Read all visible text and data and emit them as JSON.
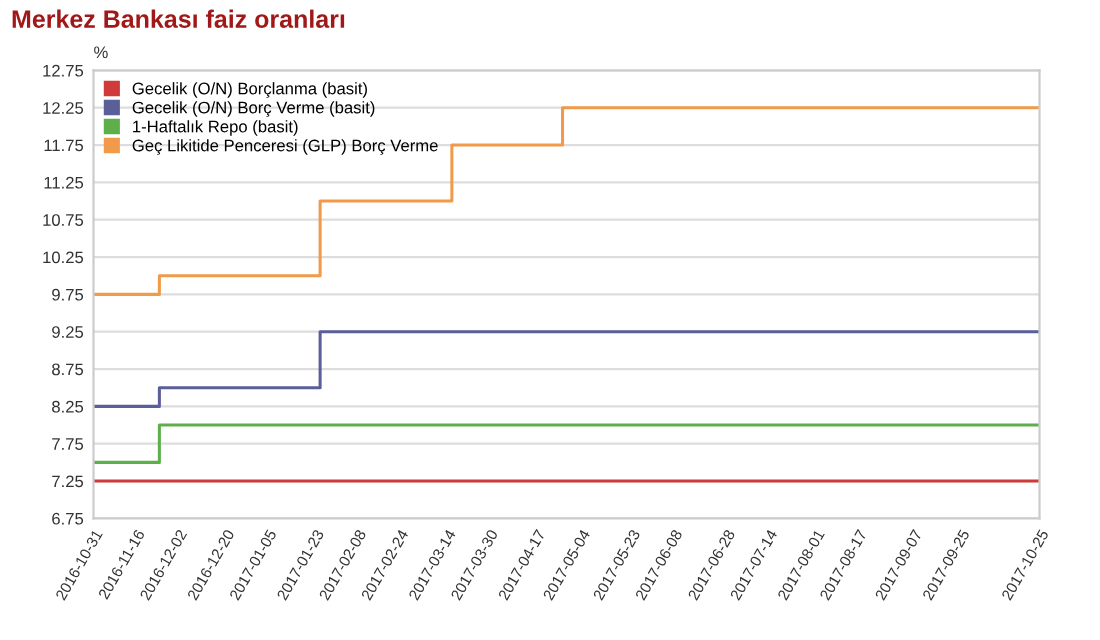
{
  "chart_data": {
    "type": "step",
    "title": "Merkez Bankası faiz oranları",
    "ylabel": "%",
    "series": [
      {
        "name": "Gecelik (O/N) Borçlanma (basit)",
        "color": "#d03a3a",
        "x": [
          "2016-10-31",
          "2017-10-25"
        ],
        "values": [
          7.25,
          7.25
        ]
      },
      {
        "name": "Gecelik (O/N) Borç Verme (basit)",
        "color": "#5a5f98",
        "x": [
          "2016-10-31",
          "2016-11-25",
          "2017-01-25",
          "2017-10-25"
        ],
        "values": [
          8.25,
          8.5,
          9.25,
          9.25
        ]
      },
      {
        "name": "1-Haftalık Repo (basit)",
        "color": "#5fae4c",
        "x": [
          "2016-10-31",
          "2016-11-25",
          "2017-10-25"
        ],
        "values": [
          7.5,
          8.0,
          8.0
        ]
      },
      {
        "name": "Geç Likitide Penceresi (GLP) Borç Verme",
        "color": "#f09a4a",
        "x": [
          "2016-10-31",
          "2016-11-25",
          "2017-01-25",
          "2017-03-16",
          "2017-04-27",
          "2017-10-25"
        ],
        "values": [
          9.75,
          10.0,
          11.0,
          11.75,
          12.25,
          12.25
        ]
      }
    ],
    "xlim": [
      "2016-10-31",
      "2017-10-25"
    ],
    "xticks": [
      "2016-10-31",
      "2016-11-16",
      "2016-12-02",
      "2016-12-20",
      "2017-01-05",
      "2017-01-23",
      "2017-02-08",
      "2017-02-24",
      "2017-03-14",
      "2017-03-30",
      "2017-04-17",
      "2017-05-04",
      "2017-05-23",
      "2017-06-08",
      "2017-06-28",
      "2017-07-14",
      "2017-08-01",
      "2017-08-17",
      "2017-09-07",
      "2017-09-25",
      "2017-10-25"
    ],
    "ylim": [
      6.75,
      12.75
    ],
    "yticks": [
      6.75,
      7.25,
      7.75,
      8.25,
      8.75,
      9.25,
      9.75,
      10.25,
      10.75,
      11.25,
      11.75,
      12.25,
      12.75
    ],
    "grid": "y",
    "legend": "top left",
    "marker": "none",
    "line_style": "solid"
  }
}
